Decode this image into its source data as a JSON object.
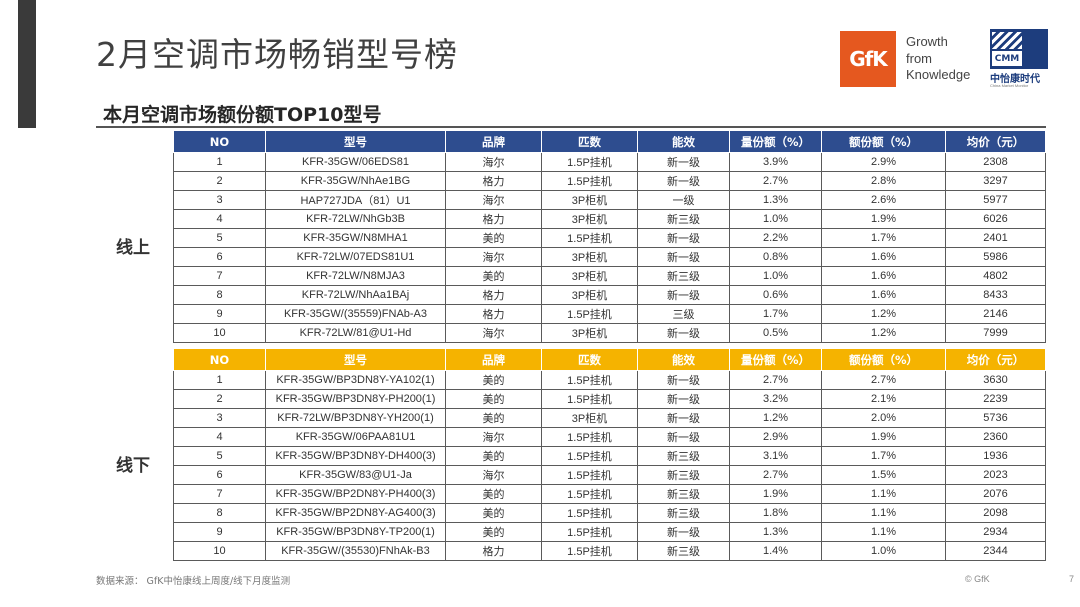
{
  "title": "2月空调市场畅销型号榜",
  "subtitle": "本月空调市场额份额TOP10型号",
  "logo": {
    "brand": "GfK",
    "tagline": [
      "Growth",
      "from",
      "Knowledge"
    ],
    "cmm_badge": "CMM",
    "cmm_name": "中怡康时代",
    "cmm_en": "China Market Monitor"
  },
  "colors": {
    "online_header": "#2e4d8f",
    "offline_header": "#f5b300",
    "brand_orange": "#e5581f"
  },
  "columns": [
    "NO",
    "型号",
    "品牌",
    "匹数",
    "能效",
    "量份额（%）",
    "额份额（%）",
    "均价（元）"
  ],
  "online": {
    "label": "线上",
    "rows": [
      [
        "1",
        "KFR-35GW/06EDS81",
        "海尔",
        "1.5P挂机",
        "新一级",
        "3.9%",
        "2.9%",
        "2308"
      ],
      [
        "2",
        "KFR-35GW/NhAe1BG",
        "格力",
        "1.5P挂机",
        "新一级",
        "2.7%",
        "2.8%",
        "3297"
      ],
      [
        "3",
        "HAP727JDA（81）U1",
        "海尔",
        "3P柜机",
        "一级",
        "1.3%",
        "2.6%",
        "5977"
      ],
      [
        "4",
        "KFR-72LW/NhGb3B",
        "格力",
        "3P柜机",
        "新三级",
        "1.0%",
        "1.9%",
        "6026"
      ],
      [
        "5",
        "KFR-35GW/N8MHA1",
        "美的",
        "1.5P挂机",
        "新一级",
        "2.2%",
        "1.7%",
        "2401"
      ],
      [
        "6",
        "KFR-72LW/07EDS81U1",
        "海尔",
        "3P柜机",
        "新一级",
        "0.8%",
        "1.6%",
        "5986"
      ],
      [
        "7",
        "KFR-72LW/N8MJA3",
        "美的",
        "3P柜机",
        "新三级",
        "1.0%",
        "1.6%",
        "4802"
      ],
      [
        "8",
        "KFR-72LW/NhAa1BAj",
        "格力",
        "3P柜机",
        "新一级",
        "0.6%",
        "1.6%",
        "8433"
      ],
      [
        "9",
        "KFR-35GW/(35559)FNAb-A3",
        "格力",
        "1.5P挂机",
        "三级",
        "1.7%",
        "1.2%",
        "2146"
      ],
      [
        "10",
        "KFR-72LW/81@U1-Hd",
        "海尔",
        "3P柜机",
        "新一级",
        "0.5%",
        "1.2%",
        "7999"
      ]
    ]
  },
  "offline": {
    "label": "线下",
    "rows": [
      [
        "1",
        "KFR-35GW/BP3DN8Y-YA102(1)",
        "美的",
        "1.5P挂机",
        "新一级",
        "2.7%",
        "2.7%",
        "3630"
      ],
      [
        "2",
        "KFR-35GW/BP3DN8Y-PH200(1)",
        "美的",
        "1.5P挂机",
        "新一级",
        "3.2%",
        "2.1%",
        "2239"
      ],
      [
        "3",
        "KFR-72LW/BP3DN8Y-YH200(1)",
        "美的",
        "3P柜机",
        "新一级",
        "1.2%",
        "2.0%",
        "5736"
      ],
      [
        "4",
        "KFR-35GW/06PAA81U1",
        "海尔",
        "1.5P挂机",
        "新一级",
        "2.9%",
        "1.9%",
        "2360"
      ],
      [
        "5",
        "KFR-35GW/BP3DN8Y-DH400(3)",
        "美的",
        "1.5P挂机",
        "新三级",
        "3.1%",
        "1.7%",
        "1936"
      ],
      [
        "6",
        "KFR-35GW/83@U1-Ja",
        "海尔",
        "1.5P挂机",
        "新三级",
        "2.7%",
        "1.5%",
        "2023"
      ],
      [
        "7",
        "KFR-35GW/BP2DN8Y-PH400(3)",
        "美的",
        "1.5P挂机",
        "新三级",
        "1.9%",
        "1.1%",
        "2076"
      ],
      [
        "8",
        "KFR-35GW/BP2DN8Y-AG400(3)",
        "美的",
        "1.5P挂机",
        "新三级",
        "1.8%",
        "1.1%",
        "2098"
      ],
      [
        "9",
        "KFR-35GW/BP3DN8Y-TP200(1)",
        "美的",
        "1.5P挂机",
        "新一级",
        "1.3%",
        "1.1%",
        "2934"
      ],
      [
        "10",
        "KFR-35GW/(35530)FNhAk-B3",
        "格力",
        "1.5P挂机",
        "新三级",
        "1.4%",
        "1.0%",
        "2344"
      ]
    ]
  },
  "footer": {
    "source": "数据来源： GfK中怡康线上周度/线下月度监测",
    "copyright": "© GfK",
    "page": "7"
  }
}
